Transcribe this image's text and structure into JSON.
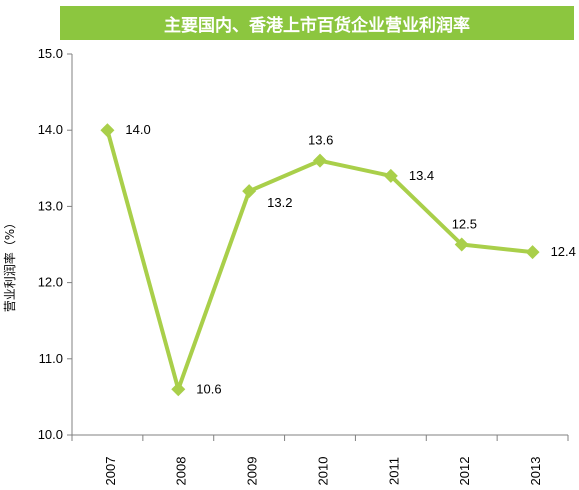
{
  "chart_data": {
    "type": "line",
    "title": "主要国内、香港上市百货企业营业利润率",
    "xlabel": "",
    "ylabel": "营业利润率（%）",
    "categories": [
      "2007",
      "2008",
      "2009",
      "2010",
      "2011",
      "2012",
      "2013"
    ],
    "series": [
      {
        "values": [
          14.0,
          10.6,
          13.2,
          13.6,
          13.4,
          12.5,
          12.4
        ],
        "labels": [
          "14.0",
          "10.6",
          "13.2",
          "13.6",
          "13.4",
          "12.5",
          "12.4"
        ],
        "color": "#a9cf4a"
      }
    ],
    "ylim": [
      10.0,
      15.0
    ],
    "yticks": [
      "10.0",
      "11.0",
      "12.0",
      "13.0",
      "14.0",
      "15.0"
    ],
    "grid": false,
    "legend": "none",
    "colors": {
      "title_background": "#8cc63f",
      "line": "#a9cf4a",
      "axis": "#808080"
    }
  }
}
